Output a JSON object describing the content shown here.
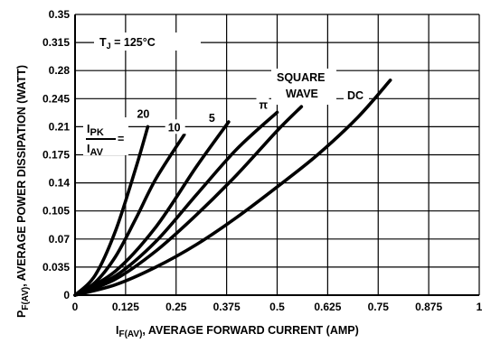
{
  "chart_data": {
    "type": "line",
    "xlabel_main": "I",
    "xlabel_sub": "F(AV)",
    "xlabel_rest": ", AVERAGE FORWARD CURRENT (AMP)",
    "ylabel_main": "P",
    "ylabel_sub": "F(AV)",
    "ylabel_rest": ", AVERAGE POWER DISSIPATION (WATT)",
    "xlim": [
      0,
      1
    ],
    "ylim": [
      0,
      0.35
    ],
    "x_ticks": [
      "0",
      "0.125",
      "0.25",
      "0.375",
      "0.5",
      "0.625",
      "0.75",
      "0.875",
      "1"
    ],
    "y_ticks": [
      "0",
      "0.035",
      "0.07",
      "0.105",
      "0.14",
      "0.175",
      "0.21",
      "0.245",
      "0.28",
      "0.315",
      "0.35"
    ],
    "grid": true,
    "annotations": {
      "tj_main": "T",
      "tj_sub": "J",
      "tj_rest": " = 125°C",
      "ratio_num": "I",
      "ratio_num_sub": "PK",
      "ratio_den": "I",
      "ratio_den_sub": "AV",
      "ratio_eq": "=",
      "square_line1": "SQUARE",
      "square_line2": "WAVE",
      "dc": "DC"
    },
    "series": [
      {
        "label": "20",
        "x": [
          0,
          0.05,
          0.1,
          0.15,
          0.18
        ],
        "y": [
          0,
          0.025,
          0.08,
          0.158,
          0.21
        ]
      },
      {
        "label": "10",
        "x": [
          0,
          0.05,
          0.1,
          0.15,
          0.2,
          0.27
        ],
        "y": [
          0,
          0.016,
          0.048,
          0.095,
          0.145,
          0.2
        ]
      },
      {
        "label": "5",
        "x": [
          0,
          0.1,
          0.2,
          0.3,
          0.38
        ],
        "y": [
          0,
          0.03,
          0.085,
          0.16,
          0.216
        ]
      },
      {
        "label": "π",
        "x": [
          0,
          0.1,
          0.2,
          0.3,
          0.4,
          0.5
        ],
        "y": [
          0,
          0.024,
          0.067,
          0.125,
          0.182,
          0.228
        ]
      },
      {
        "label": "SQUARE WAVE",
        "x": [
          0,
          0.1,
          0.2,
          0.3,
          0.4,
          0.5,
          0.56
        ],
        "y": [
          0,
          0.02,
          0.055,
          0.1,
          0.15,
          0.205,
          0.235
        ]
      },
      {
        "label": "DC",
        "x": [
          0,
          0.1,
          0.2,
          0.3,
          0.4,
          0.5,
          0.6,
          0.7,
          0.78
        ],
        "y": [
          0,
          0.013,
          0.035,
          0.063,
          0.097,
          0.135,
          0.175,
          0.222,
          0.268
        ]
      }
    ]
  }
}
